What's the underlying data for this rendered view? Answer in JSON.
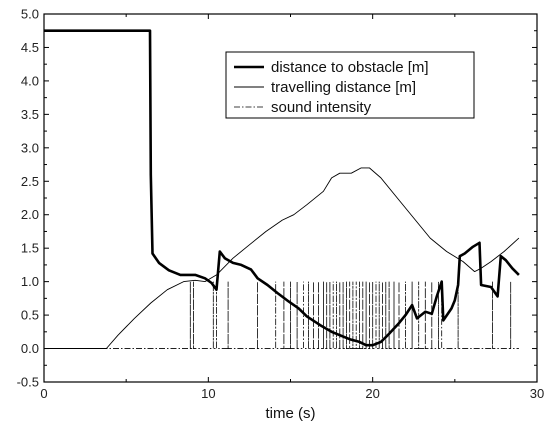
{
  "chart_data": {
    "type": "line",
    "title": "",
    "xlabel": "time (s)",
    "ylabel": "",
    "xlim": [
      0,
      30
    ],
    "ylim": [
      -0.5,
      5.0
    ],
    "xticks": [
      "0",
      "10",
      "20",
      "30"
    ],
    "yticks": [
      "-0.5",
      "0.0",
      "0.5",
      "1.0",
      "1.5",
      "2.0",
      "2.5",
      "3.0",
      "3.5",
      "4.0",
      "4.5",
      "5.0"
    ],
    "legend": {
      "position": "top-right"
    },
    "series": [
      {
        "name": "distance to obstacle [m]",
        "style": "thick",
        "points": [
          [
            0,
            4.75
          ],
          [
            6.45,
            4.75
          ],
          [
            6.5,
            2.6
          ],
          [
            6.6,
            1.42
          ],
          [
            7.0,
            1.28
          ],
          [
            7.6,
            1.17
          ],
          [
            8.3,
            1.1
          ],
          [
            9.2,
            1.1
          ],
          [
            9.8,
            1.05
          ],
          [
            10.2,
            0.98
          ],
          [
            10.5,
            0.88
          ],
          [
            10.7,
            1.45
          ],
          [
            11.0,
            1.35
          ],
          [
            11.5,
            1.28
          ],
          [
            12.0,
            1.25
          ],
          [
            12.6,
            1.18
          ],
          [
            13.0,
            1.05
          ],
          [
            13.6,
            0.95
          ],
          [
            14.2,
            0.83
          ],
          [
            14.8,
            0.72
          ],
          [
            15.5,
            0.6
          ],
          [
            16.0,
            0.48
          ],
          [
            16.8,
            0.35
          ],
          [
            17.5,
            0.25
          ],
          [
            18.0,
            0.2
          ],
          [
            18.6,
            0.14
          ],
          [
            19.2,
            0.1
          ],
          [
            19.6,
            0.05
          ],
          [
            20.0,
            0.05
          ],
          [
            20.5,
            0.1
          ],
          [
            21.0,
            0.22
          ],
          [
            21.6,
            0.38
          ],
          [
            22.0,
            0.5
          ],
          [
            22.4,
            0.65
          ],
          [
            22.7,
            0.45
          ],
          [
            23.2,
            0.55
          ],
          [
            23.6,
            0.52
          ],
          [
            23.9,
            0.78
          ],
          [
            24.2,
            1.0
          ],
          [
            24.3,
            0.42
          ],
          [
            24.8,
            0.6
          ],
          [
            25.0,
            0.72
          ],
          [
            25.2,
            0.95
          ],
          [
            25.3,
            1.38
          ],
          [
            25.6,
            1.42
          ],
          [
            26.1,
            1.52
          ],
          [
            26.5,
            1.58
          ],
          [
            26.6,
            0.95
          ],
          [
            27.2,
            0.92
          ],
          [
            27.6,
            0.78
          ],
          [
            27.8,
            1.38
          ],
          [
            28.1,
            1.32
          ],
          [
            28.5,
            1.2
          ],
          [
            28.9,
            1.1
          ]
        ]
      },
      {
        "name": "travelling distance [m]",
        "style": "thin",
        "points": [
          [
            0,
            0
          ],
          [
            3.8,
            0
          ],
          [
            4.5,
            0.2
          ],
          [
            5.5,
            0.45
          ],
          [
            6.5,
            0.68
          ],
          [
            7.5,
            0.88
          ],
          [
            8.5,
            1.0
          ],
          [
            9.2,
            1.02
          ],
          [
            9.8,
            1.0
          ],
          [
            10.5,
            1.1
          ],
          [
            11.5,
            1.35
          ],
          [
            12.5,
            1.55
          ],
          [
            13.5,
            1.75
          ],
          [
            14.5,
            1.92
          ],
          [
            15.2,
            2.0
          ],
          [
            16.0,
            2.15
          ],
          [
            17.0,
            2.35
          ],
          [
            17.5,
            2.55
          ],
          [
            18.0,
            2.62
          ],
          [
            18.7,
            2.62
          ],
          [
            19.3,
            2.7
          ],
          [
            19.8,
            2.7
          ],
          [
            20.5,
            2.55
          ],
          [
            21.5,
            2.25
          ],
          [
            22.5,
            1.95
          ],
          [
            23.5,
            1.65
          ],
          [
            24.5,
            1.45
          ],
          [
            25.5,
            1.3
          ],
          [
            26.2,
            1.15
          ],
          [
            26.6,
            1.2
          ],
          [
            27.2,
            1.3
          ],
          [
            28.0,
            1.45
          ],
          [
            28.9,
            1.65
          ]
        ]
      },
      {
        "name": "sound intensity",
        "style": "dash-dot",
        "baseline": 0,
        "pulses": [
          8.9,
          9.1,
          10.3,
          10.5,
          11.2,
          13.0,
          14.1,
          14.6,
          15.0,
          15.4,
          15.8,
          16.1,
          16.4,
          16.7,
          17.0,
          17.2,
          17.4,
          17.6,
          17.8,
          18.0,
          18.2,
          18.4,
          18.6,
          18.8,
          19.0,
          19.2,
          19.4,
          19.6,
          19.8,
          20.0,
          20.2,
          20.4,
          20.6,
          20.8,
          21.0,
          21.3,
          21.6,
          22.0,
          22.4,
          22.8,
          23.2,
          23.6,
          24.0,
          24.2,
          25.2,
          27.3,
          28.4
        ],
        "pulse_value": 1.0
      }
    ]
  }
}
